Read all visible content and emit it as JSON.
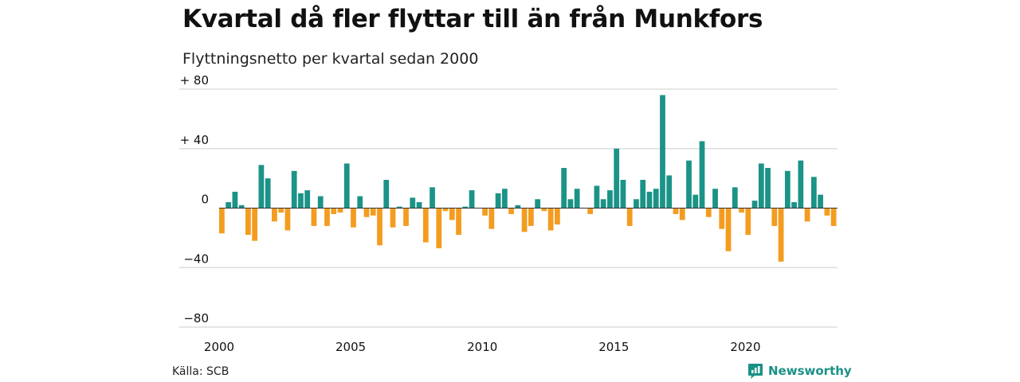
{
  "chart_data": {
    "type": "bar",
    "title": "Kvartal då fler flyttar till än från Munkfors",
    "subtitle": "Flyttningsnetto per kvartal sedan 2000",
    "xlabel": "",
    "ylabel": "",
    "ylim": [
      -80,
      80
    ],
    "y_ticks": [
      {
        "value": 80,
        "label": "+ 80"
      },
      {
        "value": 40,
        "label": "+ 40"
      },
      {
        "value": 0,
        "label": "0"
      },
      {
        "value": -40,
        "label": "−40"
      },
      {
        "value": -80,
        "label": "−80"
      }
    ],
    "x_ticks": [
      {
        "year": 2000,
        "label": "2000"
      },
      {
        "year": 2005,
        "label": "2005"
      },
      {
        "year": 2010,
        "label": "2010"
      },
      {
        "year": 2015,
        "label": "2015"
      },
      {
        "year": 2020,
        "label": "2020"
      }
    ],
    "grid": true,
    "start_year": 2000,
    "periods_per_year": 4,
    "values": [
      -17,
      4,
      11,
      2,
      -18,
      -22,
      29,
      20,
      -9,
      -3,
      -15,
      25,
      10,
      12,
      -12,
      8,
      -12,
      -4,
      -3,
      30,
      -13,
      8,
      -6,
      -5,
      -25,
      19,
      -13,
      1,
      -12,
      7,
      4,
      -23,
      14,
      -27,
      -2,
      -8,
      -18,
      1,
      12,
      0,
      -5,
      -14,
      10,
      13,
      -4,
      2,
      -16,
      -12,
      6,
      -2,
      -15,
      -11,
      27,
      6,
      13,
      0,
      -4,
      15,
      6,
      12,
      40,
      19,
      -12,
      6,
      19,
      11,
      13,
      76,
      22,
      -4,
      -8,
      32,
      9,
      45,
      -6,
      13,
      -14,
      -29,
      14,
      -3,
      -18,
      5,
      30,
      27,
      -12,
      -36,
      25,
      4,
      32,
      -9,
      21,
      9,
      -5,
      -12
    ],
    "colors": {
      "positive": "#1b9387",
      "negative": "#f39c1f"
    }
  },
  "footer": {
    "source": "Källa: SCB",
    "brand": "Newsworthy",
    "brand_icon": "newsworthy-logo-icon"
  }
}
